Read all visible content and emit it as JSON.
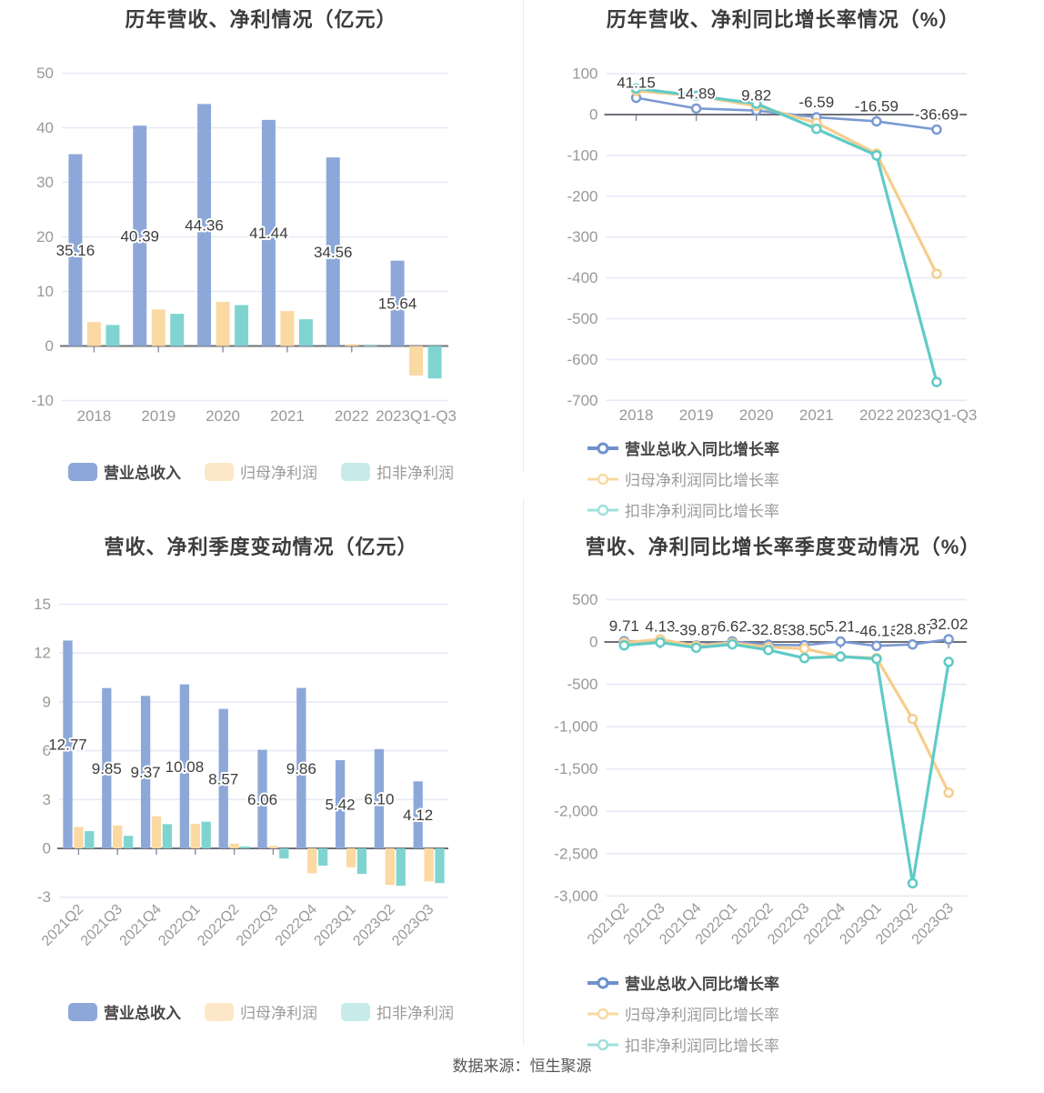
{
  "footer": {
    "source_label": "数据来源：恒生聚源"
  },
  "colors": {
    "bar_blue": "#8DA8D8",
    "bar_yellow": "#FBD9A2",
    "bar_teal": "#7FD4D0",
    "line_blue": "#7B9AD3",
    "line_yellow": "#F6CD8D",
    "line_teal": "#5FCBC7",
    "legend_blue": "#8DA8D8",
    "legend_yellow_pale": "#FCE8C6",
    "legend_teal_pale": "#C7EBE9",
    "legend_line_blue": "#6E91CC",
    "legend_line_yellow": "#F9D9A2",
    "legend_line_teal": "#9FE0DC",
    "grid": "#E6EAF6",
    "zero_axis": "#6E7079",
    "tick_text": "#999999",
    "label_text": "#3C3C3C"
  },
  "chart_data": [
    {
      "type": "bar",
      "title": "历年营收、净利情况（亿元）",
      "categories": [
        "2018",
        "2019",
        "2020",
        "2021",
        "2022",
        "2023Q1-Q3"
      ],
      "yticks": {
        "values": [
          50,
          40,
          30,
          20,
          10,
          0,
          -10
        ],
        "labels": [
          "50",
          "40",
          "30",
          "20",
          "10",
          "0",
          "-10"
        ]
      },
      "ylim": [
        -10,
        50
      ],
      "series": [
        {
          "name": "营业总收入",
          "color": "#8DA8D8",
          "legend_color": "#8DA8D8",
          "values": [
            35.16,
            40.39,
            44.36,
            41.44,
            34.56,
            15.64
          ],
          "labels": [
            "35.16",
            "40.39",
            "44.36",
            "41.44",
            "34.56",
            "15.64"
          ]
        },
        {
          "name": "归母净利润",
          "color": "#FBD9A2",
          "legend_color": "#FCE8C6",
          "values": [
            4.4,
            6.7,
            8.1,
            6.4,
            0.33,
            -5.4
          ]
        },
        {
          "name": "扣非净利润",
          "color": "#7FD4D0",
          "legend_color": "#C7EBE9",
          "values": [
            3.85,
            5.9,
            7.5,
            4.9,
            0.05,
            -5.95
          ]
        }
      ]
    },
    {
      "type": "line",
      "title": "历年营收、净利同比增长率情况（%）",
      "categories": [
        "2018",
        "2019",
        "2020",
        "2021",
        "2022",
        "2023Q1-Q3"
      ],
      "yticks": {
        "values": [
          100,
          0,
          -100,
          -200,
          -300,
          -400,
          -500,
          -600,
          -700
        ],
        "labels": [
          "100",
          "0",
          "-100",
          "-200",
          "-300",
          "-400",
          "-500",
          "-600",
          "-700"
        ]
      },
      "ylim": [
        -700,
        100
      ],
      "series": [
        {
          "name": "营业总收入同比增长率",
          "color": "#7B9AD3",
          "legend_color": "#6E91CC",
          "values": [
            41.15,
            14.89,
            9.82,
            -6.59,
            -16.59,
            -36.69
          ],
          "labels": [
            "41.15",
            "14.89",
            "9.82",
            "-6.59",
            "-16.59",
            "-36.69"
          ]
        },
        {
          "name": "归母净利润同比增长率",
          "color": "#F6CD8D",
          "legend_color": "#F9D9A2",
          "values": [
            58,
            46,
            21,
            -20,
            -96,
            -390
          ]
        },
        {
          "name": "扣非净利润同比增长率",
          "color": "#5FCBC7",
          "legend_color": "#9FE0DC",
          "values": [
            64,
            46,
            27,
            -35,
            -100,
            -655
          ]
        }
      ]
    },
    {
      "type": "bar",
      "title": "营收、净利季度变动情况（亿元）",
      "categories": [
        "2021Q2",
        "2021Q3",
        "2021Q4",
        "2022Q1",
        "2022Q2",
        "2022Q3",
        "2022Q4",
        "2023Q1",
        "2023Q2",
        "2023Q3"
      ],
      "yticks": {
        "values": [
          15,
          12,
          9,
          6,
          3,
          0,
          -3
        ],
        "labels": [
          "15",
          "12",
          "9",
          "6",
          "3",
          "0",
          "-3"
        ]
      },
      "ylim": [
        -3,
        15
      ],
      "series": [
        {
          "name": "营业总收入",
          "color": "#8DA8D8",
          "legend_color": "#8DA8D8",
          "values": [
            12.77,
            9.85,
            9.37,
            10.08,
            8.57,
            6.06,
            9.86,
            5.42,
            6.1,
            4.12
          ],
          "labels": [
            "12.77",
            "9.85",
            "9.37",
            "10.08",
            "8.57",
            "6.06",
            "9.86",
            "5.42",
            "6.10",
            "4.12"
          ]
        },
        {
          "name": "归母净利润",
          "color": "#FBD9A2",
          "legend_color": "#FCE8C6",
          "values": [
            1.32,
            1.41,
            1.97,
            1.51,
            0.29,
            0.15,
            -1.53,
            -1.16,
            -2.24,
            -2.03
          ]
        },
        {
          "name": "扣非净利润",
          "color": "#7FD4D0",
          "legend_color": "#C7EBE9",
          "values": [
            1.06,
            0.77,
            1.49,
            1.64,
            0.12,
            -0.62,
            -1.06,
            -1.57,
            -2.3,
            -2.13
          ]
        }
      ]
    },
    {
      "type": "line",
      "title": "营收、净利同比增长率季度变动情况（%）",
      "categories": [
        "2021Q2",
        "2021Q3",
        "2021Q4",
        "2022Q1",
        "2022Q2",
        "2022Q3",
        "2022Q4",
        "2023Q1",
        "2023Q2",
        "2023Q3"
      ],
      "yticks": {
        "values": [
          500,
          0,
          -500,
          -1000,
          -1500,
          -2000,
          -2500,
          -3000
        ],
        "labels": [
          "500",
          "0",
          "-500",
          "-1,000",
          "-1,500",
          "-2,000",
          "-2,500",
          "-3,000"
        ]
      },
      "ylim": [
        -3000,
        500
      ],
      "series": [
        {
          "name": "营业总收入同比增长率",
          "color": "#7B9AD3",
          "legend_color": "#6E91CC",
          "values": [
            9.71,
            4.13,
            -39.87,
            6.62,
            -32.88,
            -38.5,
            5.21,
            -46.16,
            -28.87,
            32.02
          ],
          "labels": [
            "9.71",
            "4.13",
            "-39.87",
            "6.62",
            "-32.88",
            "-38.50",
            "5.21",
            "-46.16",
            "-28.87",
            "32.02"
          ]
        },
        {
          "name": "归母净利润同比增长率",
          "color": "#F6CD8D",
          "legend_color": "#F9D9A2",
          "values": [
            -8,
            30,
            -45,
            -12,
            -61,
            -79,
            -172,
            -190,
            -910,
            -1780
          ]
        },
        {
          "name": "扣非净利润同比增长率",
          "color": "#5FCBC7",
          "legend_color": "#9FE0DC",
          "values": [
            -40,
            -5,
            -68,
            -28,
            -95,
            -190,
            -172,
            -200,
            -2850,
            -235
          ]
        }
      ]
    }
  ]
}
